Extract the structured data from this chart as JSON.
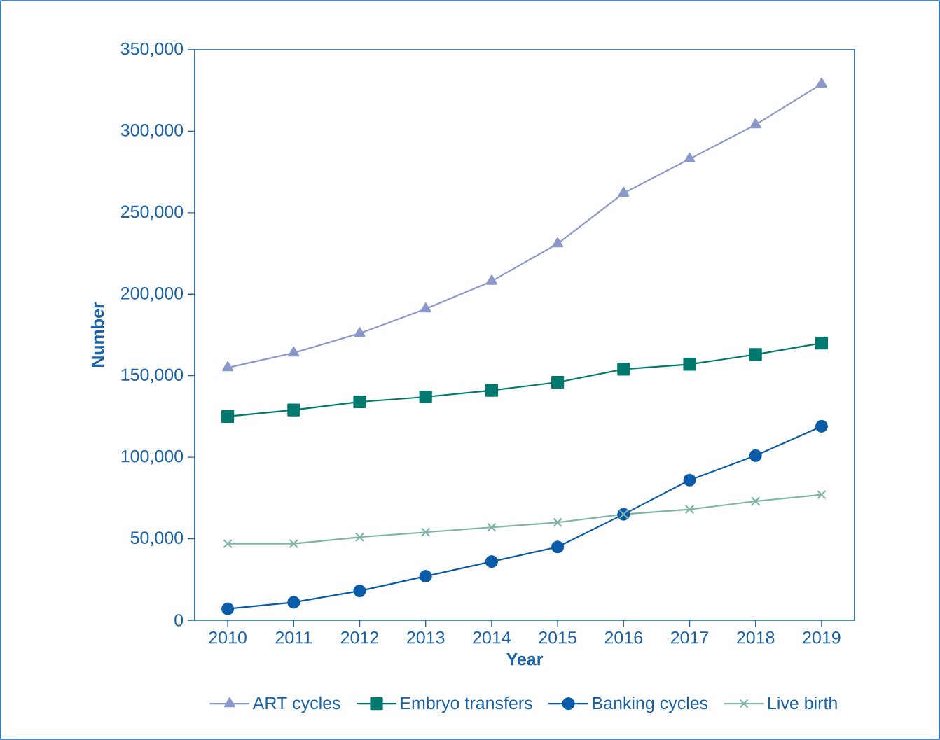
{
  "chart_data": {
    "type": "line",
    "xlabel": "Year",
    "ylabel": "Number",
    "categories": [
      "2010",
      "2011",
      "2012",
      "2013",
      "2014",
      "2015",
      "2016",
      "2017",
      "2018",
      "2019"
    ],
    "series": [
      {
        "name": "ART cycles",
        "color": "#8b98cc",
        "marker": "triangle",
        "values": [
          155000,
          164000,
          176000,
          191000,
          208000,
          231000,
          262000,
          283000,
          304000,
          329000
        ]
      },
      {
        "name": "Embryo transfers",
        "color": "#007a6e",
        "marker": "square",
        "values": [
          125000,
          129000,
          134000,
          137000,
          141000,
          146000,
          154000,
          157000,
          163000,
          170000
        ]
      },
      {
        "name": "Banking cycles",
        "color": "#0a5ba8",
        "marker": "circle",
        "values": [
          7000,
          11000,
          18000,
          27000,
          36000,
          45000,
          65000,
          86000,
          101000,
          119000
        ]
      },
      {
        "name": "Live birth",
        "color": "#7fb5a6",
        "marker": "cross",
        "values": [
          47000,
          47000,
          51000,
          54000,
          57000,
          60000,
          65000,
          68000,
          73000,
          77000
        ]
      }
    ],
    "ylim": [
      0,
      350000
    ],
    "yticks": [
      0,
      {
        "value": 50000,
        "label": "50,000"
      },
      {
        "value": 100000,
        "label": "100,000"
      },
      {
        "value": 150000,
        "label": "150,000"
      },
      {
        "value": 200000,
        "label": "200,000"
      },
      {
        "value": 250000,
        "label": "250,000"
      },
      {
        "value": 300000,
        "label": "300,000"
      },
      {
        "value": 350000,
        "label": "350,000"
      }
    ],
    "legend": "bottom",
    "line_style": "solid"
  }
}
